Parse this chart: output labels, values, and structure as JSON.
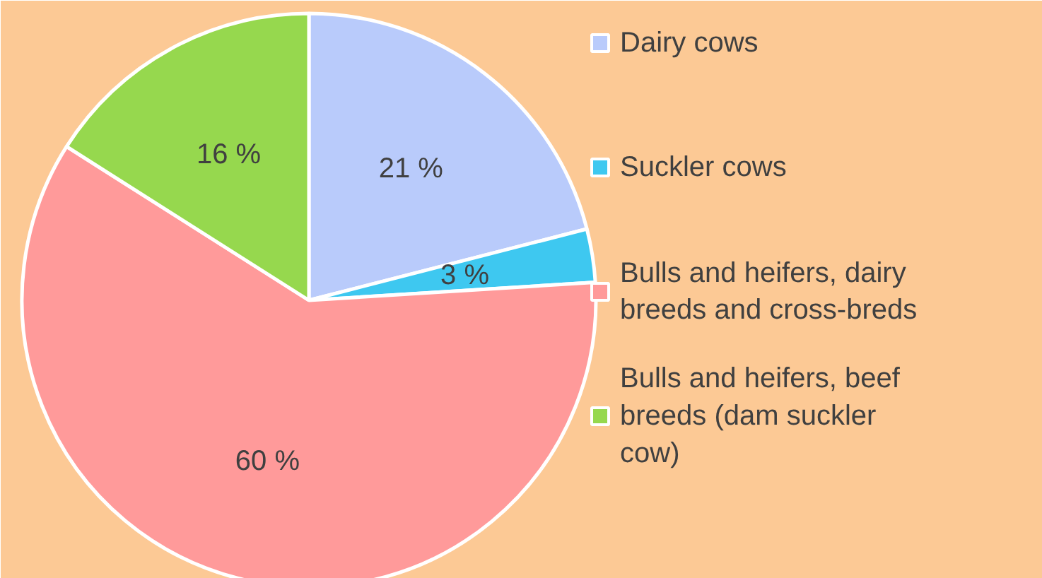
{
  "chart_data": {
    "type": "pie",
    "categories": [
      "Dairy cows",
      "Suckler cows",
      "Bulls and heifers, dairy breeds and cross-breds",
      "Bulls and heifers, beef breeds  (dam suckler cow)"
    ],
    "values": [
      21,
      3,
      60,
      16
    ],
    "colors": [
      "#b9cbfb",
      "#3ec8f0",
      "#ff9a9a",
      "#96d84e"
    ],
    "value_labels": [
      "21 %",
      "3 %",
      "60 %",
      "16 %"
    ],
    "legend": "right"
  }
}
